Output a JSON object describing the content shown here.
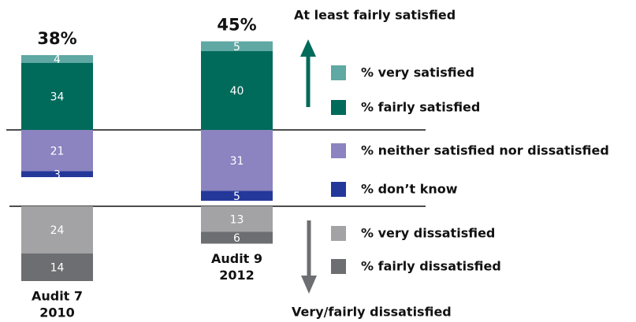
{
  "chart_data": {
    "type": "diverging_stacked_bar",
    "categories": [
      "Audit 7",
      "Audit 9"
    ],
    "years": [
      "2010",
      "2012"
    ],
    "series": [
      {
        "name": "% very satisfied",
        "color": "#5fa8a3",
        "values": [
          4,
          5
        ]
      },
      {
        "name": "% fairly satisfied",
        "color": "#006a5b",
        "values": [
          34,
          40
        ]
      },
      {
        "name": "% neither satisfied nor dissatisfied",
        "color": "#8b84c0",
        "values": [
          21,
          31
        ]
      },
      {
        "name": "% don’t know",
        "color": "#24389a",
        "values": [
          3,
          5
        ]
      },
      {
        "name": "% very dissatisfied",
        "color": "#a3a3a6",
        "values": [
          24,
          13
        ]
      },
      {
        "name": "% fairly dissatisfied",
        "color": "#6d6e71",
        "values": [
          14,
          6
        ]
      }
    ],
    "totals": {
      "values": [
        38,
        45
      ],
      "value_labels": [
        "38%",
        "45%"
      ]
    },
    "annotations": [
      "At least fairly satisfied",
      "Very/fairly dissatisfied"
    ]
  }
}
